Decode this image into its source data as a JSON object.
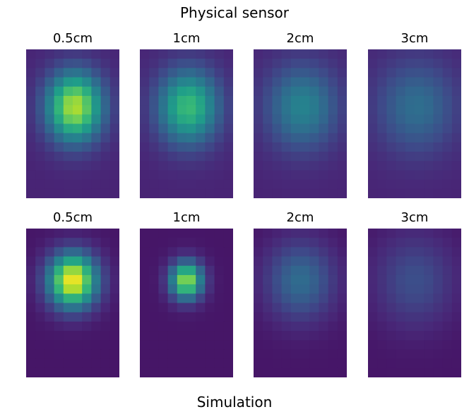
{
  "figure": {
    "top_title": "Physical sensor",
    "bottom_title": "Simulation"
  },
  "chart_data": {
    "type": "heatmap",
    "colormap": "viridis",
    "grid": {
      "rows": 16,
      "cols": 10
    },
    "rows": [
      {
        "title": "Physical sensor",
        "panels": [
          {
            "title": "0.5cm",
            "peak": 0.88,
            "center": [
              5.2,
              6.2
            ],
            "sigma": [
              2.1,
              2.6
            ],
            "floor": 0.1
          },
          {
            "title": "1cm",
            "peak": 0.68,
            "center": [
              5.2,
              6.2
            ],
            "sigma": [
              2.3,
              2.8
            ],
            "floor": 0.1
          },
          {
            "title": "2cm",
            "peak": 0.45,
            "center": [
              5.2,
              6.2
            ],
            "sigma": [
              2.7,
              3.2
            ],
            "floor": 0.1
          },
          {
            "title": "3cm",
            "peak": 0.36,
            "center": [
              5.2,
              6.2
            ],
            "sigma": [
              3.0,
              3.5
            ],
            "floor": 0.1
          }
        ]
      },
      {
        "title": "Simulation",
        "panels": [
          {
            "title": "0.5cm",
            "peak": 1.0,
            "center": [
              5.0,
              5.6
            ],
            "sigma": [
              1.8,
              2.0
            ],
            "floor": 0.06
          },
          {
            "title": "1cm",
            "peak": 0.85,
            "center": [
              5.0,
              5.6
            ],
            "sigma": [
              1.2,
              1.4
            ],
            "floor": 0.06
          },
          {
            "title": "2cm",
            "peak": 0.35,
            "center": [
              5.0,
              5.6
            ],
            "sigma": [
              2.5,
              2.9
            ],
            "floor": 0.06
          },
          {
            "title": "3cm",
            "peak": 0.24,
            "center": [
              5.0,
              5.6
            ],
            "sigma": [
              2.9,
              3.4
            ],
            "floor": 0.06
          }
        ]
      }
    ]
  }
}
